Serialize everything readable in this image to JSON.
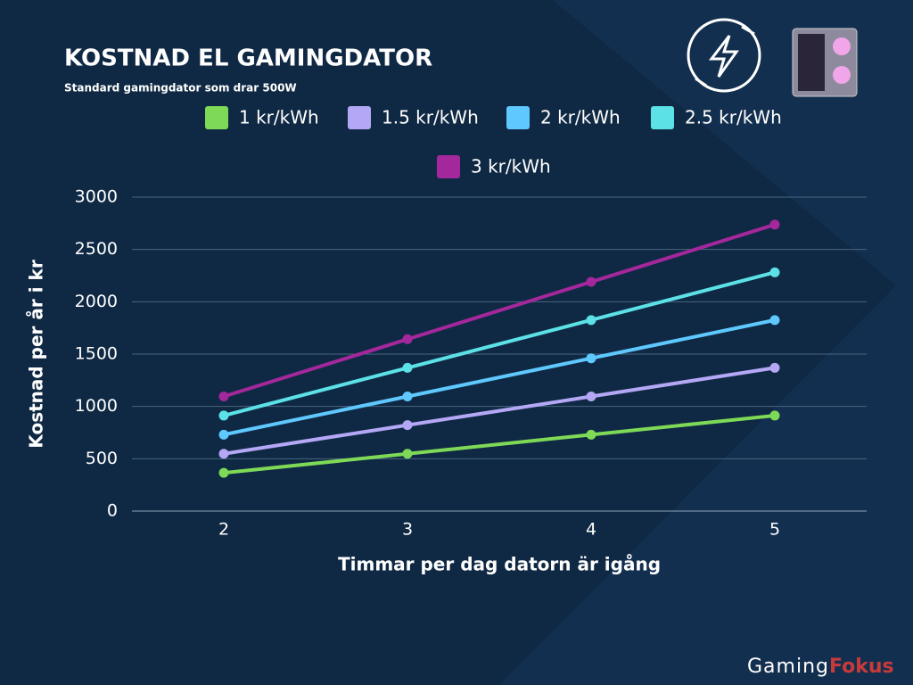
{
  "chart_data": {
    "type": "line",
    "title": "KOSTNAD EL GAMINGDATOR",
    "subtitle": "Standard gamingdator som drar 500W",
    "x_label": "Timmar per dag datorn är igång",
    "y_label": "Kostnad per år i kr",
    "categories": [
      "2",
      "3",
      "4",
      "5"
    ],
    "series": [
      {
        "name": "1 kr/kWh",
        "color": "#7ed957",
        "values": [
          365,
          547.5,
          730,
          912.5
        ]
      },
      {
        "name": "1.5 kr/kWh",
        "color": "#b4a8f6",
        "values": [
          547.5,
          821.25,
          1095,
          1368.75
        ]
      },
      {
        "name": "2 kr/kWh",
        "color": "#5ec8ff",
        "values": [
          730,
          1095,
          1460,
          1825
        ]
      },
      {
        "name": "2.5 kr/kWh",
        "color": "#5ce1e6",
        "values": [
          912.5,
          1368.75,
          1825,
          2281.25
        ]
      },
      {
        "name": "3 kr/kWh",
        "color": "#a4279b",
        "values": [
          1095,
          1642.5,
          2190,
          2737.5
        ]
      }
    ],
    "ylim": [
      0,
      3000
    ],
    "yticks": [
      0,
      500,
      1000,
      1500,
      2000,
      2500,
      3000
    ],
    "grid": true
  },
  "brand": {
    "first": "Gaming",
    "second": "Fokus"
  }
}
